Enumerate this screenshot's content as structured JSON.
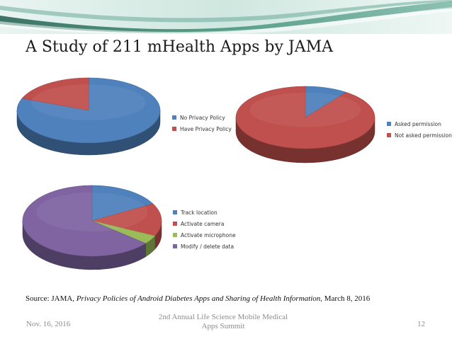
{
  "slide": {
    "title": "A Study of 211 mHealth Apps by JAMA",
    "source": {
      "prefix": "Source: JAMA, ",
      "italic": "Privacy Policies of Android Diabetes Apps and Sharing of Health Information",
      "suffix": ", March 8, 2016"
    },
    "footer": {
      "date": "Nov. 16, 2016",
      "event": "2nd Annual Life Science Mobile Medical Apps Summit",
      "page": "12"
    }
  },
  "colors": {
    "blue": "#4f81bd",
    "red": "#c0504d",
    "green": "#9bbb59",
    "purple": "#8064a2",
    "banner_dark": "#2d7560",
    "banner_light": "#dceee8"
  },
  "chart_data": [
    {
      "type": "pie",
      "title": "",
      "legend_position": "right",
      "style": "3d",
      "series": [
        {
          "name": "No Privacy Policy",
          "value": 81,
          "color": "#4f81bd"
        },
        {
          "name": "Have Privacy Policy",
          "value": 19,
          "color": "#c0504d"
        }
      ]
    },
    {
      "type": "pie",
      "title": "",
      "legend_position": "right",
      "style": "3d",
      "series": [
        {
          "name": "Asked permission",
          "value": 10,
          "color": "#4f81bd"
        },
        {
          "name": "Not asked permission",
          "value": 90,
          "color": "#c0504d"
        }
      ]
    },
    {
      "type": "pie",
      "title": "",
      "legend_position": "right",
      "style": "3d",
      "series": [
        {
          "name": "Track location",
          "value": 17,
          "color": "#4f81bd"
        },
        {
          "name": "Activate camera",
          "value": 15,
          "color": "#c0504d"
        },
        {
          "name": "Activate microphone",
          "value": 4,
          "color": "#9bbb59"
        },
        {
          "name": "Modify / delete data",
          "value": 64,
          "color": "#8064a2"
        }
      ]
    }
  ]
}
